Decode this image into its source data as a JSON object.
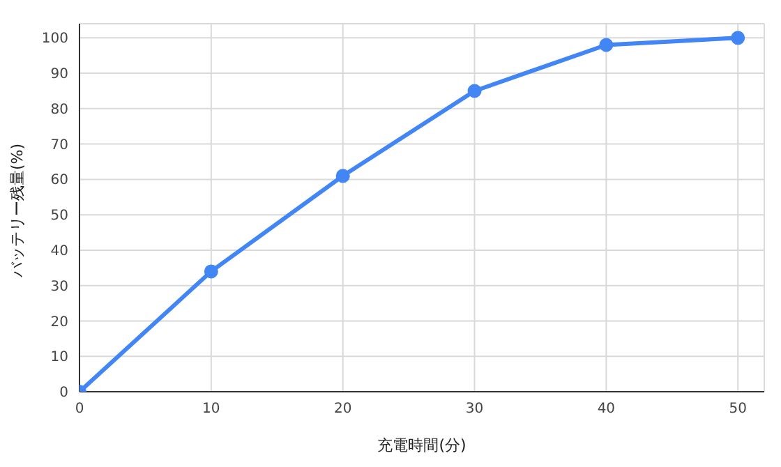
{
  "chart_data": {
    "type": "line",
    "xlabel": "充電時間(分)",
    "ylabel": "バッテリー残量(%)",
    "x": [
      0,
      10,
      20,
      30,
      40,
      50
    ],
    "series": [
      {
        "color": "#4285f4",
        "values": [
          0,
          34,
          61,
          85,
          98,
          100
        ]
      }
    ],
    "xlim": [
      0,
      52
    ],
    "xticks": [
      0,
      10,
      20,
      30,
      40,
      50
    ],
    "ylim": [
      0,
      104
    ],
    "yticks": [
      0,
      10,
      20,
      30,
      40,
      50,
      60,
      70,
      80,
      90,
      100
    ],
    "grid": true,
    "marker": "circle",
    "line_style": "solid",
    "legend": false
  }
}
